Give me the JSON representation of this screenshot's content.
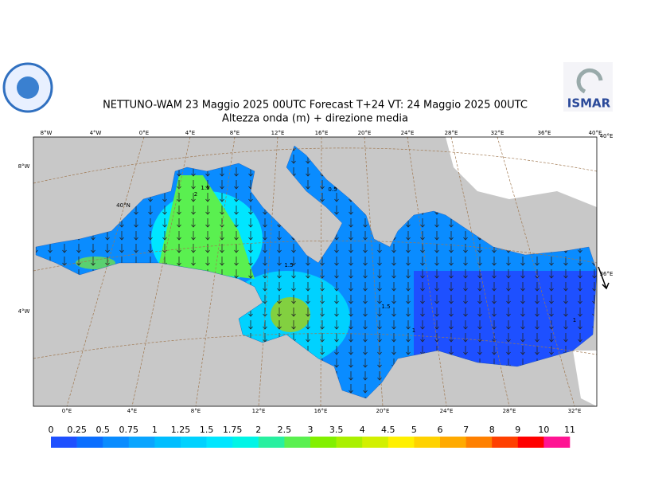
{
  "header": {
    "title": "NETTUNO-WAM 23 Maggio 2025 00UTC Forecast T+24 VT: 24 Maggio 2025 00UTC",
    "subtitle": "Altezza onda (m) + direzione media",
    "logo": "ISMAR"
  },
  "top_lon_labels": [
    "8°W",
    "4°W",
    "0°E",
    "4°E",
    "8°E",
    "12°E",
    "16°E",
    "20°E",
    "24°E",
    "28°E",
    "32°E",
    "36°E",
    "40°E"
  ],
  "bottom_lon_labels": [
    "0°E",
    "4°E",
    "8°E",
    "12°E",
    "16°E",
    "20°E",
    "24°E",
    "28°E",
    "32°E"
  ],
  "left_labels": [
    "8°W",
    "4°W"
  ],
  "right_labels": [
    "40°E",
    "36°E"
  ],
  "inner_labels": [
    "40°N"
  ],
  "contour_labels": [
    "1.5",
    "2",
    "0.5",
    "1.5",
    "1.5",
    "1",
    "1"
  ],
  "colorbar": {
    "levels": [
      0,
      0.25,
      0.5,
      0.75,
      1,
      1.25,
      1.5,
      1.75,
      2,
      2.5,
      3,
      3.5,
      4,
      4.5,
      5,
      6,
      7,
      8,
      9,
      10,
      11
    ],
    "colors": [
      "#1e50ff",
      "#0a6eff",
      "#0a8cff",
      "#0aa5ff",
      "#00beff",
      "#00d2ff",
      "#00e6ff",
      "#00f5e6",
      "#28f0a0",
      "#5af050",
      "#82f000",
      "#aaf000",
      "#d2f000",
      "#fff000",
      "#ffd200",
      "#ffaa00",
      "#ff8000",
      "#ff4000",
      "#ff0000",
      "#ff1493"
    ]
  }
}
